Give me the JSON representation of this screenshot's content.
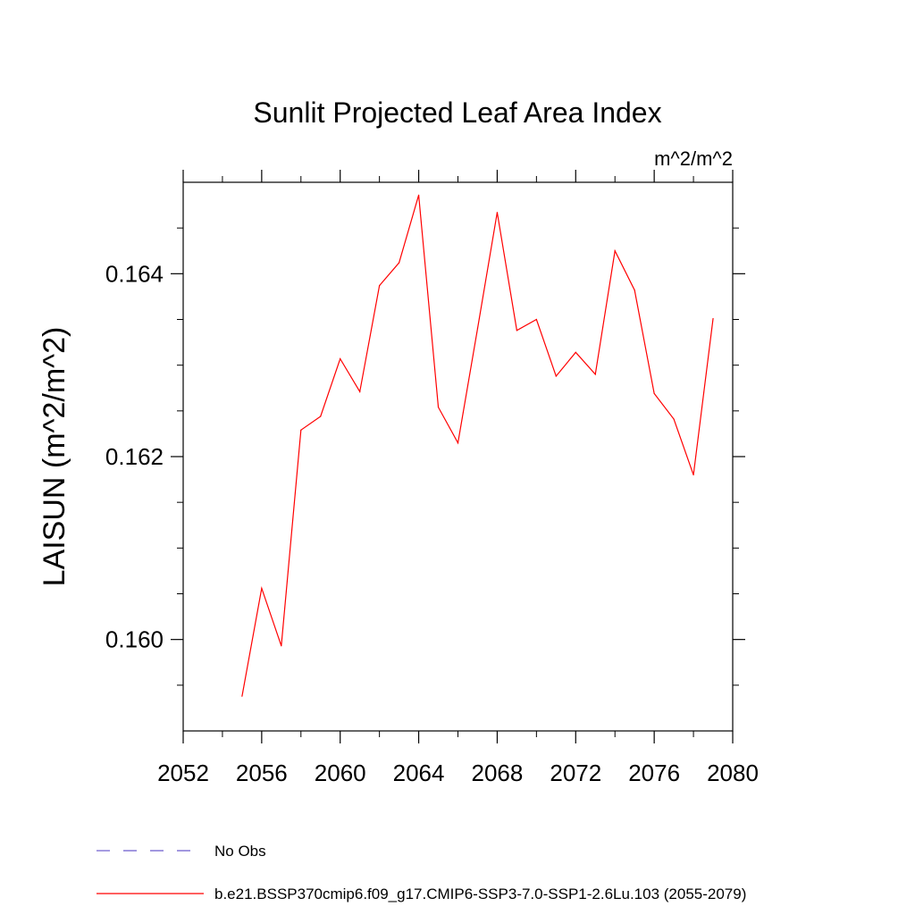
{
  "chart_data": {
    "type": "line",
    "title": "Sunlit Projected Leaf Area Index",
    "units_label": "m^2/m^2",
    "ylabel": "LAISUN  (m^2/m^2)",
    "xlabel": "",
    "xlim": [
      2052,
      2080
    ],
    "ylim": [
      0.159,
      0.165
    ],
    "x_ticks": [
      2052,
      2056,
      2060,
      2064,
      2068,
      2072,
      2076,
      2080
    ],
    "x_tick_labels": [
      "2052",
      "2056",
      "2060",
      "2064",
      "2068",
      "2072",
      "2076",
      "2080"
    ],
    "y_ticks": [
      0.16,
      0.162,
      0.164
    ],
    "y_tick_labels": [
      "0.160",
      "0.162",
      "0.164"
    ],
    "x_minor_step": 2,
    "y_minor_step": 0.0005,
    "grid": false,
    "legend_position": "bottom",
    "series": [
      {
        "name": "No Obs",
        "color": "#6a5acd",
        "dashed": true,
        "x": [],
        "values": []
      },
      {
        "name": "b.e21.BSSP370cmip6.f09_g17.CMIP6-SSP3-7.0-SSP1-2.6Lu.103 (2055-2079)",
        "color": "#ff0000",
        "dashed": false,
        "x": [
          2055,
          2056,
          2057,
          2058,
          2059,
          2060,
          2061,
          2062,
          2063,
          2064,
          2065,
          2066,
          2067,
          2068,
          2069,
          2070,
          2071,
          2072,
          2073,
          2074,
          2075,
          2076,
          2077,
          2078,
          2079
        ],
        "values": [
          0.15938,
          0.16056,
          0.15993,
          0.16229,
          0.16244,
          0.16307,
          0.16271,
          0.16387,
          0.16412,
          0.16486,
          0.16254,
          0.16215,
          0.1634,
          0.16467,
          0.16338,
          0.1635,
          0.16288,
          0.16314,
          0.1629,
          0.16425,
          0.16382,
          0.16269,
          0.16241,
          0.1618,
          0.16351
        ]
      }
    ]
  }
}
